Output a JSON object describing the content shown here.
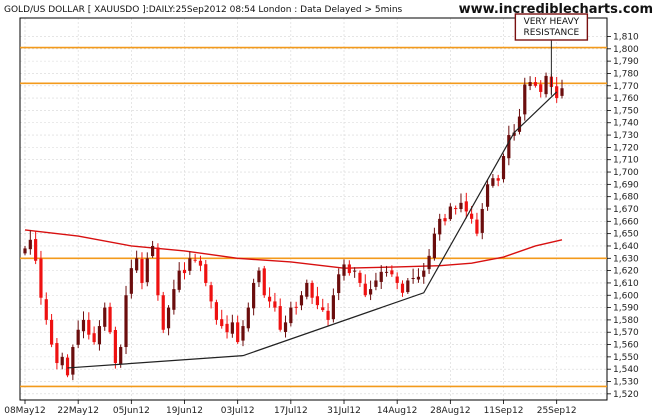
{
  "chart_data": {
    "type": "candlestick",
    "title": "GOLD/US DOLLAR [ XAUUSDO ]:DAILY:25Sep2012 08:54 London : Data Delayed > 5mins",
    "brand": "www.incrediblecharts.com",
    "annotation": {
      "lines": [
        "VERY HEAVY",
        "RESISTANCE"
      ],
      "date_index": 99,
      "price": 1800
    },
    "ylim": [
      1515,
      1825
    ],
    "yticks": [
      1520,
      1530,
      1540,
      1550,
      1560,
      1570,
      1580,
      1590,
      1600,
      1610,
      1620,
      1630,
      1640,
      1650,
      1660,
      1670,
      1680,
      1690,
      1700,
      1710,
      1720,
      1730,
      1740,
      1750,
      1760,
      1770,
      1780,
      1790,
      1800,
      1810
    ],
    "x_labels": [
      {
        "label": "08May12",
        "index": 0
      },
      {
        "label": "22May12",
        "index": 10
      },
      {
        "label": "05Jun12",
        "index": 20
      },
      {
        "label": "19Jun12",
        "index": 30
      },
      {
        "label": "03Jul12",
        "index": 40
      },
      {
        "label": "17Jul12",
        "index": 50
      },
      {
        "label": "31Jul12",
        "index": 60
      },
      {
        "label": "14Aug12",
        "index": 70
      },
      {
        "label": "28Aug12",
        "index": 80
      },
      {
        "label": "11Sep12",
        "index": 90
      },
      {
        "label": "25Sep12",
        "index": 100
      }
    ],
    "n_days": 102,
    "horizontal_lines": [
      1801,
      1772,
      1630,
      1526
    ],
    "trendlines": [
      [
        [
          8,
          1541
        ],
        [
          41,
          1551
        ],
        [
          75,
          1602
        ],
        [
          92,
          1732
        ],
        [
          100,
          1765
        ]
      ]
    ],
    "moving_average": [
      [
        0,
        1653
      ],
      [
        10,
        1648
      ],
      [
        20,
        1640
      ],
      [
        30,
        1636
      ],
      [
        40,
        1630
      ],
      [
        50,
        1627
      ],
      [
        60,
        1622
      ],
      [
        70,
        1623
      ],
      [
        78,
        1624
      ],
      [
        84,
        1626
      ],
      [
        90,
        1631
      ],
      [
        96,
        1640
      ],
      [
        101,
        1645
      ]
    ],
    "closes": [
      1638,
      1645,
      1628,
      1598,
      1580,
      1560,
      1545,
      1550,
      1535,
      1558,
      1572,
      1580,
      1568,
      1562,
      1575,
      1590,
      1570,
      1545,
      1558,
      1600,
      1622,
      1630,
      1610,
      1630,
      1640,
      1600,
      1572,
      1590,
      1605,
      1620,
      1618,
      1630,
      1628,
      1624,
      1610,
      1595,
      1580,
      1575,
      1570,
      1578,
      1562,
      1575,
      1590,
      1610,
      1620,
      1600,
      1595,
      1590,
      1572,
      1578,
      1590,
      1590,
      1600,
      1610,
      1598,
      1592,
      1588,
      1580,
      1600,
      1617,
      1625,
      1618,
      1620,
      1610,
      1600,
      1605,
      1612,
      1619,
      1619,
      1617,
      1610,
      1602,
      1612,
      1614,
      1615,
      1620,
      1632,
      1650,
      1662,
      1660,
      1672,
      1670,
      1675,
      1668,
      1662,
      1650,
      1670,
      1690,
      1695,
      1693,
      1713,
      1730,
      1732,
      1745,
      1771,
      1773,
      1770,
      1765,
      1778,
      1769,
      1760,
      1768
    ]
  }
}
